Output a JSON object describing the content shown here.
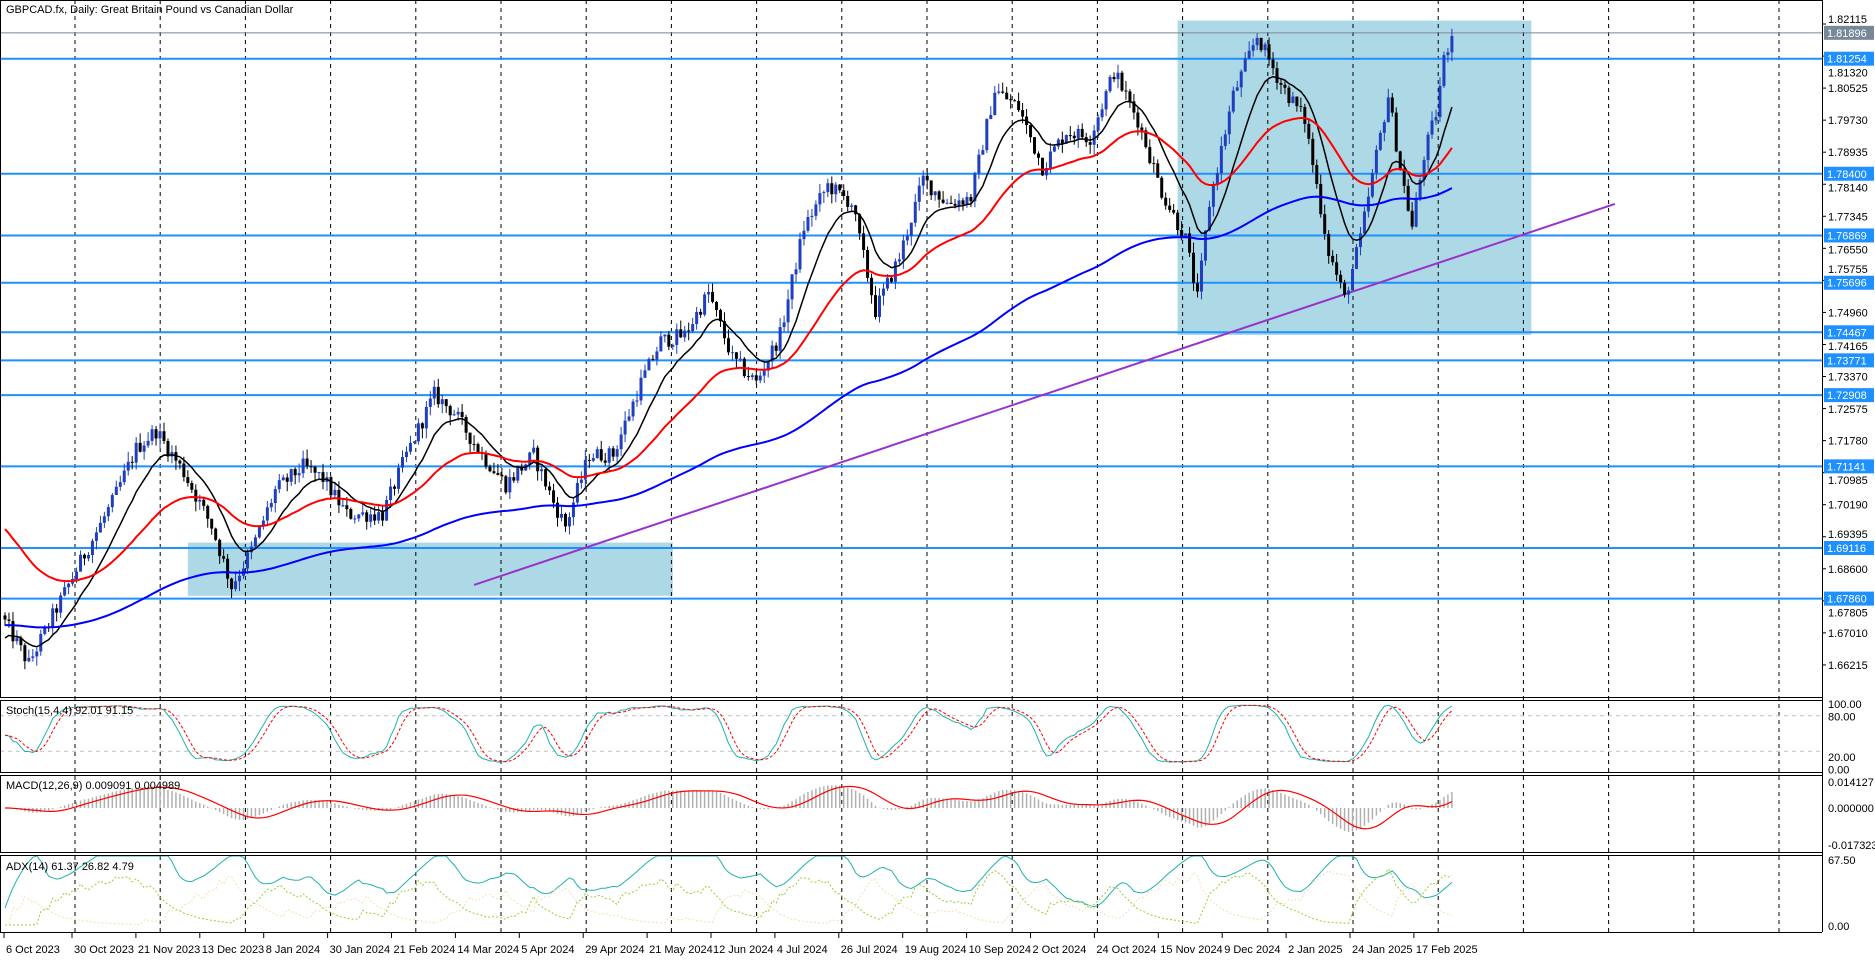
{
  "title": "GBPCAD.fx, Daily:  Great Britain Pound vs Canadian Dollar",
  "colors": {
    "bull": "#1f3fbf",
    "bear": "#000000",
    "level": "#1e90ff",
    "zone": "#add8e6",
    "trendline": "#9932cc",
    "ma_fast": "#000000",
    "ma_mid": "#ff0000",
    "ma_slow": "#0000ff",
    "current_price": "#778899",
    "stoch_main": "#20b2aa",
    "stoch_signal": "#ff0000",
    "macd_hist": "#b0b0b0",
    "macd_signal": "#ff0000",
    "adx": "#20b2aa",
    "plus_di": "#9acd32",
    "minus_di": "#f5deb3"
  },
  "price_axis": [
    "1.82115",
    "1.81320",
    "1.80525",
    "1.79730",
    "1.78935",
    "1.78140",
    "1.77345",
    "1.76550",
    "1.75755",
    "1.74960",
    "1.74165",
    "1.73370",
    "1.72575",
    "1.71780",
    "1.70985",
    "1.70190",
    "1.69395",
    "1.68600",
    "1.67805",
    "1.67010",
    "1.66215"
  ],
  "levels": [
    "1.81254",
    "1.78400",
    "1.76869",
    "1.75696",
    "1.74467",
    "1.73771",
    "1.72908",
    "1.71141",
    "1.69116",
    "1.67860"
  ],
  "current_price": "1.81896",
  "date_axis": [
    "6 Oct 2023",
    "30 Oct 2023",
    "21 Nov 2023",
    "13 Dec 2023",
    "8 Jan 2024",
    "30 Jan 2024",
    "21 Feb 2024",
    "14 Mar 2024",
    "5 Apr 2024",
    "29 Apr 2024",
    "21 May 2024",
    "12 Jun 2024",
    "4 Jul 2024",
    "26 Jul 2024",
    "19 Aug 2024",
    "10 Sep 2024",
    "2 Oct 2024",
    "24 Oct 2024",
    "15 Nov 2024",
    "9 Dec 2024",
    "2 Jan 2025",
    "24 Jan 2025",
    "17 Feb 2025"
  ],
  "indicators": {
    "stoch": {
      "label": "Stoch(15,4,4) 92.01 91.15",
      "axis": [
        "100.00",
        "80.00",
        "20.00",
        "0.00"
      ]
    },
    "macd": {
      "label": "MACD(12,26,9) 0.009091 0.004989",
      "axis": [
        "0.014127",
        "0.000000",
        "-0.017323"
      ]
    },
    "adx": {
      "label": "ADX(14) 61.37 26.82 4.79",
      "axis": [
        "67.50",
        "0.00"
      ]
    }
  },
  "chart_data": {
    "type": "candlestick",
    "symbol": "GBPCAD.fx",
    "timeframe": "Daily",
    "ylim": [
      1.66215,
      1.82115
    ],
    "bars": 365,
    "close_anchors": [
      [
        0,
        1.6728
      ],
      [
        6,
        1.6624
      ],
      [
        12,
        1.6743
      ],
      [
        19,
        1.6877
      ],
      [
        27,
        1.7025
      ],
      [
        33,
        1.7158
      ],
      [
        38,
        1.7203
      ],
      [
        45,
        1.7099
      ],
      [
        52,
        1.6966
      ],
      [
        57,
        1.6817
      ],
      [
        62,
        1.6906
      ],
      [
        68,
        1.7054
      ],
      [
        75,
        1.7114
      ],
      [
        80,
        1.7084
      ],
      [
        86,
        1.6995
      ],
      [
        95,
        1.6995
      ],
      [
        101,
        1.7143
      ],
      [
        108,
        1.7292
      ],
      [
        113,
        1.7247
      ],
      [
        120,
        1.7143
      ],
      [
        126,
        1.7069
      ],
      [
        133,
        1.7143
      ],
      [
        138,
        1.7025
      ],
      [
        141,
        1.6966
      ],
      [
        147,
        1.7143
      ],
      [
        153,
        1.7143
      ],
      [
        160,
        1.7322
      ],
      [
        165,
        1.7425
      ],
      [
        171,
        1.744
      ],
      [
        177,
        1.7544
      ],
      [
        183,
        1.7381
      ],
      [
        189,
        1.7322
      ],
      [
        195,
        1.744
      ],
      [
        201,
        1.7707
      ],
      [
        207,
        1.7811
      ],
      [
        213,
        1.7767
      ],
      [
        219,
        1.75
      ],
      [
        225,
        1.7633
      ],
      [
        231,
        1.7826
      ],
      [
        237,
        1.7767
      ],
      [
        243,
        1.7781
      ],
      [
        249,
        1.8048
      ],
      [
        255,
        1.8004
      ],
      [
        261,
        1.7856
      ],
      [
        267,
        1.7945
      ],
      [
        273,
        1.793
      ],
      [
        279,
        1.8093
      ],
      [
        285,
        1.7974
      ],
      [
        291,
        1.7796
      ],
      [
        297,
        1.7678
      ],
      [
        300,
        1.7529
      ],
      [
        303,
        1.7767
      ],
      [
        309,
        1.8034
      ],
      [
        315,
        1.8182
      ],
      [
        321,
        1.8063
      ],
      [
        327,
        1.7974
      ],
      [
        333,
        1.7648
      ],
      [
        337,
        1.7529
      ],
      [
        341,
        1.7678
      ],
      [
        345,
        1.7885
      ],
      [
        348,
        1.8034
      ],
      [
        351,
        1.7856
      ],
      [
        354,
        1.7707
      ],
      [
        357,
        1.7885
      ],
      [
        360,
        1.7989
      ],
      [
        362,
        1.8123
      ],
      [
        364,
        1.819
      ]
    ],
    "moving_averages": [
      "fast (black)",
      "medium (red)",
      "slow (blue)"
    ],
    "zones": [
      {
        "from_bar": 295,
        "to_bar": 384,
        "high": 1.822,
        "low": 1.744
      },
      {
        "from_bar": 46,
        "to_bar": 168,
        "high": 1.6925,
        "low": 1.6793
      }
    ],
    "trendline": {
      "from": [
        118,
        1.682
      ],
      "to": [
        405,
        1.7765
      ]
    }
  }
}
